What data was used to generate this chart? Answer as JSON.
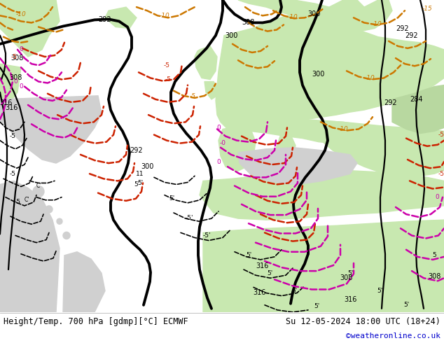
{
  "title_left": "Height/Temp. 700 hPa [gdmp][°C] ECMWF",
  "title_right": "Su 12-05-2024 18:00 UTC (18+24)",
  "credit": "©weatheronline.co.uk",
  "land_color": "#c8e8b0",
  "sea_color": "#d0d0d0",
  "bg_color": "#d0d0d0",
  "footer_bg": "#ffffff",
  "black": "#000000",
  "orange": "#cc7700",
  "red": "#cc2200",
  "magenta": "#cc00aa",
  "blue": "#0000cc"
}
